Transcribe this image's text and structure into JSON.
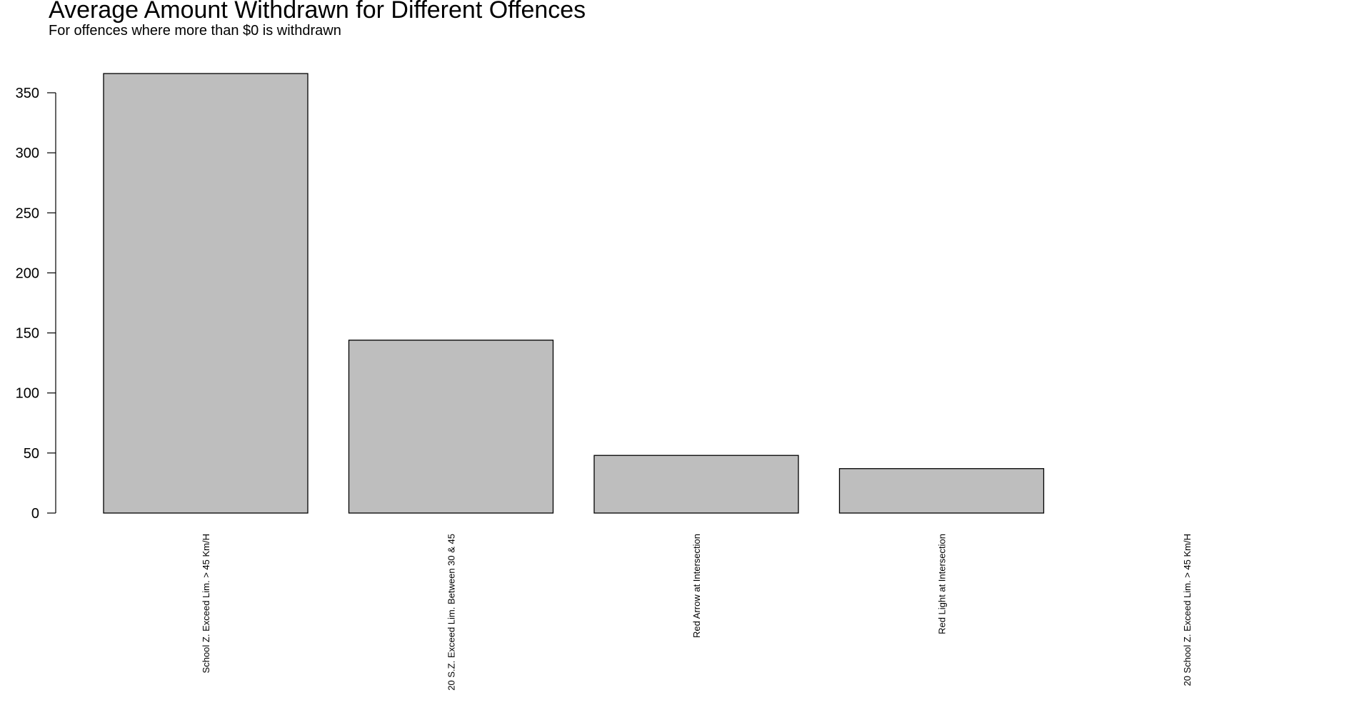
{
  "chart_data": {
    "type": "bar",
    "title": "Average Amount Withdrawn for Different Offences",
    "subtitle": "For offences where more than $0 is withdrawn",
    "xlabel": "",
    "ylabel": "",
    "categories": [
      "School Z. Exceed Lim. > 45 Km/H",
      "20 S.Z. Exceed Lim. Between 30 & 45",
      "Red Arrow at Intersection",
      "Red Light at Intersection",
      "20 School Z. Exceed Lim. > 45 Km/H"
    ],
    "values": [
      366,
      144,
      48,
      37,
      0
    ],
    "ylim": [
      0,
      350
    ],
    "yticks": [
      0,
      50,
      100,
      150,
      200,
      250,
      300,
      350
    ],
    "grid": false,
    "legend": "none",
    "colors": {
      "bar_fill": "#bebebe",
      "bar_stroke": "#000000",
      "axis": "#000000",
      "background": "#ffffff"
    }
  }
}
